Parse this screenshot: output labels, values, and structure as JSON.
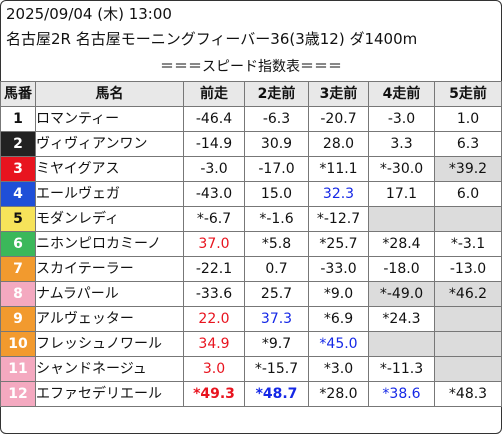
{
  "header": {
    "datetime": "2025/09/04 (木) 13:00",
    "race": "名古屋2R 名古屋モーニングフィーバー36(3歳12) ダ1400m"
  },
  "banner": "＝＝＝スピード指数表＝＝＝",
  "columns": [
    "馬番",
    "馬名",
    "前走",
    "2走前",
    "3走前",
    "4走前",
    "5走前"
  ],
  "colors": {
    "frame1": "#ffffff",
    "frame2": "#222222",
    "frame3": "#e8141f",
    "frame4": "#1f4fd8",
    "frame5": "#f6e35a",
    "frame6": "#3bb85a",
    "frame7": "#f29a2e",
    "frame8": "#f4a9c0",
    "value_red": "#e8141f",
    "value_blue": "#1528e6",
    "shade": "#dcdcdc"
  },
  "horses": [
    {
      "num": "1",
      "name": "ロマンティー",
      "runs": [
        {
          "v": "-46.4"
        },
        {
          "v": "-6.3"
        },
        {
          "v": "-20.7"
        },
        {
          "v": "-3.0"
        },
        {
          "v": "1.0"
        }
      ]
    },
    {
      "num": "2",
      "name": "ヴィヴィアンワン",
      "runs": [
        {
          "v": "-14.9"
        },
        {
          "v": "30.9"
        },
        {
          "v": "28.0"
        },
        {
          "v": "3.3"
        },
        {
          "v": "6.3"
        }
      ]
    },
    {
      "num": "3",
      "name": "ミヤイグアス",
      "runs": [
        {
          "v": "-3.0"
        },
        {
          "v": "-17.0"
        },
        {
          "v": "*11.1"
        },
        {
          "v": "*-30.0"
        },
        {
          "v": "*39.2",
          "shade": true
        }
      ]
    },
    {
      "num": "4",
      "name": "エールヴェガ",
      "runs": [
        {
          "v": "-43.0"
        },
        {
          "v": "15.0"
        },
        {
          "v": "32.3",
          "color": "blue"
        },
        {
          "v": "17.1"
        },
        {
          "v": "6.0"
        }
      ]
    },
    {
      "num": "5",
      "name": "モダンレディ",
      "runs": [
        {
          "v": "*-6.7"
        },
        {
          "v": "*-1.6"
        },
        {
          "v": "*-12.7"
        },
        {
          "v": "",
          "shade": true
        },
        {
          "v": "",
          "shade": true
        }
      ]
    },
    {
      "num": "6",
      "name": "ニホンピロカミーノ",
      "runs": [
        {
          "v": "37.0",
          "color": "red"
        },
        {
          "v": "*5.8"
        },
        {
          "v": "*25.7"
        },
        {
          "v": "*28.4"
        },
        {
          "v": "*-3.1"
        }
      ]
    },
    {
      "num": "7",
      "name": "スカイテーラー",
      "runs": [
        {
          "v": "-22.1"
        },
        {
          "v": "0.7"
        },
        {
          "v": "-33.0"
        },
        {
          "v": "-18.0"
        },
        {
          "v": "-13.0"
        }
      ]
    },
    {
      "num": "8",
      "name": "ナムラパール",
      "runs": [
        {
          "v": "-33.6"
        },
        {
          "v": "25.7"
        },
        {
          "v": "*9.0"
        },
        {
          "v": "*-49.0",
          "shade": true
        },
        {
          "v": "*46.2",
          "shade": true
        }
      ]
    },
    {
      "num": "9",
      "name": "アルヴェッター",
      "runs": [
        {
          "v": "22.0",
          "color": "red"
        },
        {
          "v": "37.3",
          "color": "blue"
        },
        {
          "v": "*6.9"
        },
        {
          "v": "*24.3"
        },
        {
          "v": "",
          "shade": true
        }
      ]
    },
    {
      "num": "10",
      "name": "フレッシュノワール",
      "runs": [
        {
          "v": "34.9",
          "color": "red"
        },
        {
          "v": "*9.7"
        },
        {
          "v": "*45.0",
          "color": "blue"
        },
        {
          "v": "",
          "shade": true
        },
        {
          "v": "",
          "shade": true
        }
      ]
    },
    {
      "num": "11",
      "name": "シャンドネージュ",
      "runs": [
        {
          "v": "3.0",
          "color": "red"
        },
        {
          "v": "*-15.7"
        },
        {
          "v": "*3.0"
        },
        {
          "v": "*-11.3"
        },
        {
          "v": "",
          "shade": true
        }
      ]
    },
    {
      "num": "12",
      "name": "エファセデリエール",
      "runs": [
        {
          "v": "*49.3",
          "color": "red",
          "bold": true
        },
        {
          "v": "*48.7",
          "color": "blue",
          "bold": true
        },
        {
          "v": "*28.0"
        },
        {
          "v": "*38.6",
          "color": "blue"
        },
        {
          "v": "*48.3"
        }
      ]
    }
  ]
}
